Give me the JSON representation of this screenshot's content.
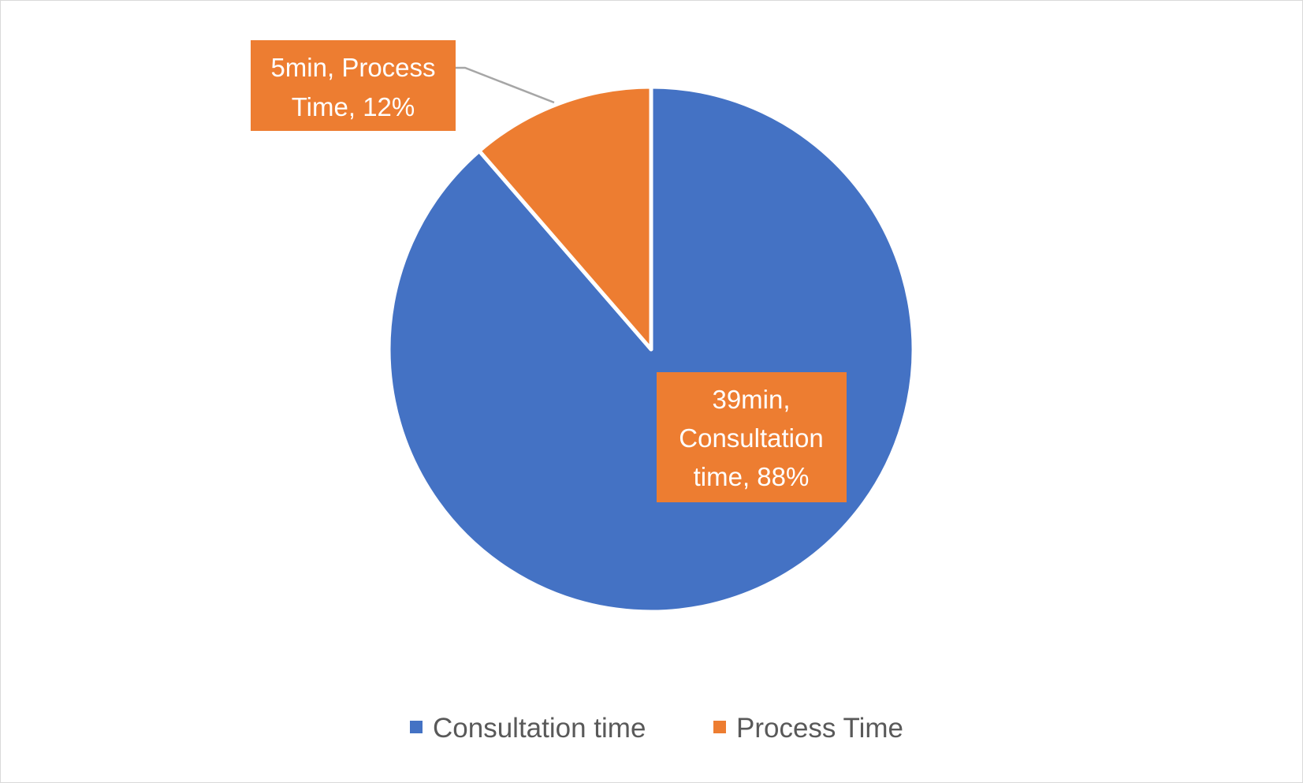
{
  "chart_data": {
    "type": "pie",
    "categories": [
      "Consultation time",
      "Process Time"
    ],
    "values": [
      39,
      5
    ],
    "percent_labels": [
      "88%",
      "12%"
    ],
    "value_labels": [
      "39min",
      "5min"
    ],
    "data_labels": [
      [
        "39min,",
        "Consultation",
        "time, 88%"
      ],
      [
        "5min, Process",
        "Time, 12%"
      ]
    ],
    "colors": [
      "#4472C4",
      "#ED7D31"
    ],
    "label_fill": "#ED7D31",
    "leader_line_color": "#A6A6A6",
    "legend": {
      "position": "bottom",
      "entries": [
        "Consultation time",
        "Process Time"
      ]
    },
    "title": ""
  }
}
